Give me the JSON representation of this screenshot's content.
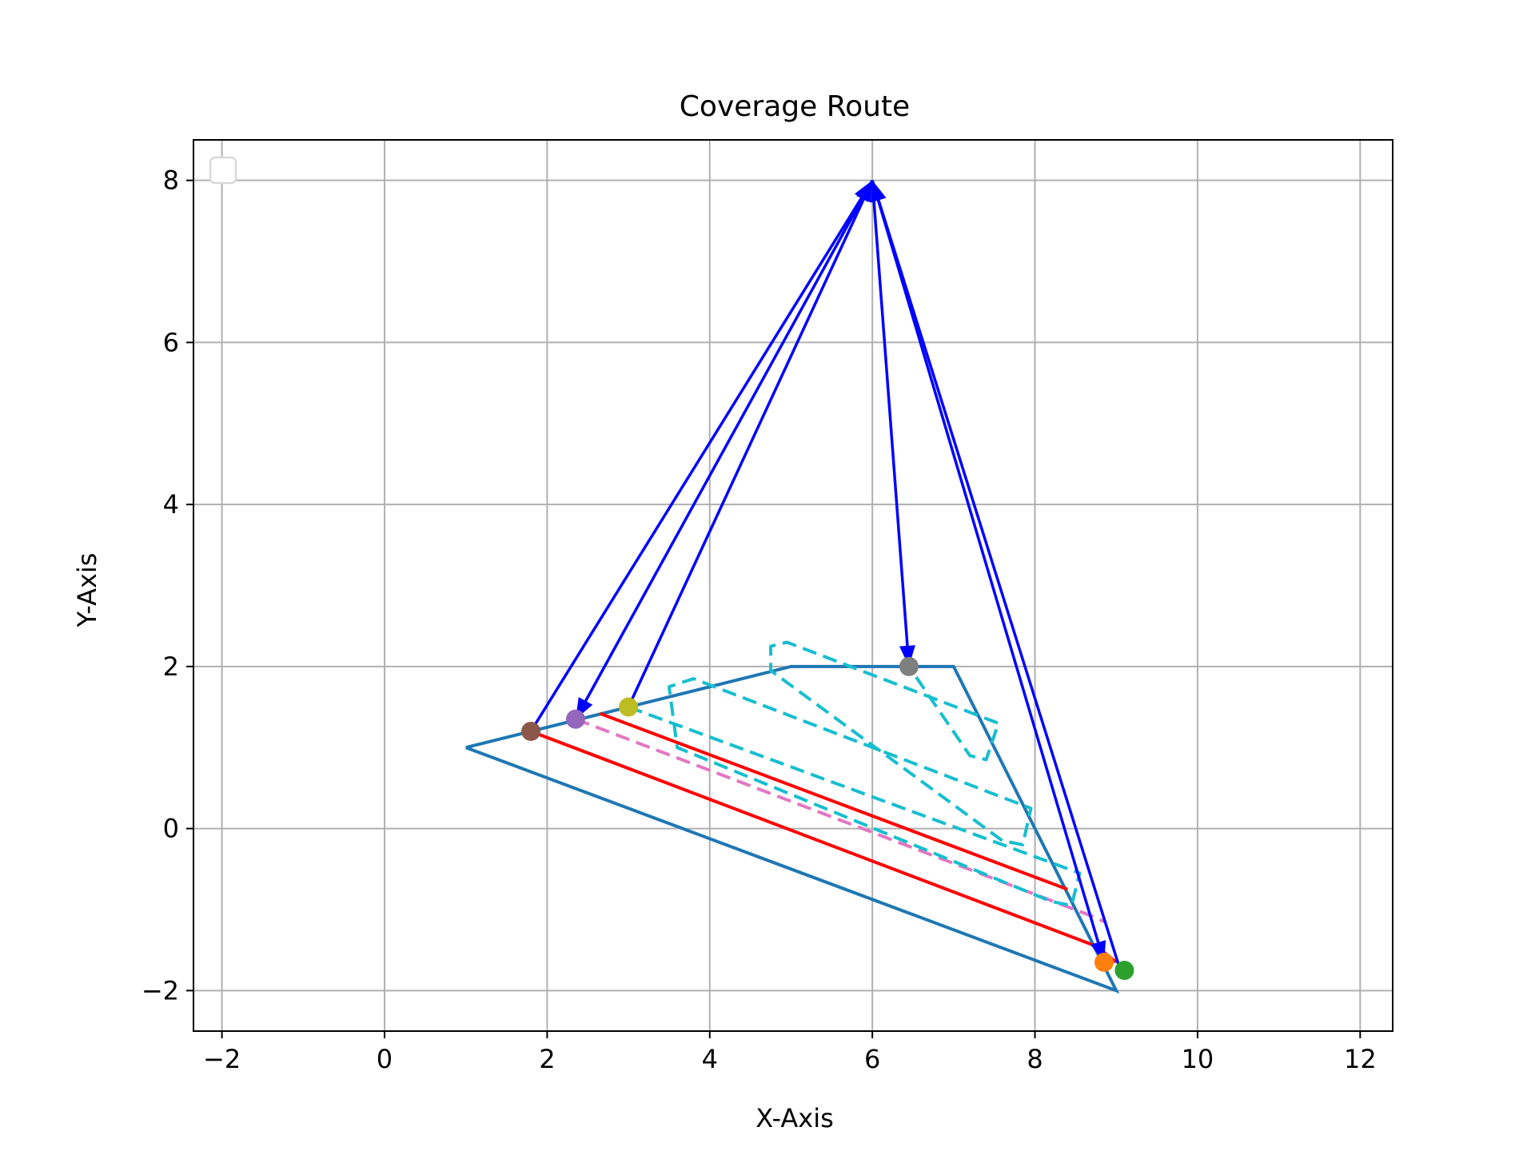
{
  "chart_data": {
    "type": "line",
    "title": "Coverage Route",
    "xlabel": "X-Axis",
    "ylabel": "Y-Axis",
    "xlim": [
      -2.35,
      12.4
    ],
    "ylim": [
      -2.5,
      8.5
    ],
    "xticks": [
      -2,
      0,
      2,
      4,
      6,
      8,
      10,
      12
    ],
    "yticks": [
      -2,
      0,
      2,
      4,
      6,
      8
    ],
    "grid": true,
    "legend": {
      "placement": "upper-left",
      "entries": []
    },
    "colors": {
      "boundary": "#1f77b4",
      "arrows": "#0000ff",
      "red_path": "#ff0000",
      "pink_path": "#e377c2",
      "cyan_path": "#17becf"
    },
    "boundary": [
      [
        1.0,
        1.0
      ],
      [
        5.0,
        2.0
      ],
      [
        7.0,
        2.0
      ],
      [
        9.0,
        -2.0
      ],
      [
        1.0,
        1.0
      ]
    ],
    "apex": [
      6.0,
      8.0
    ],
    "arrows": [
      {
        "from": [
          1.8,
          1.2
        ],
        "to": [
          6.0,
          8.0
        ]
      },
      {
        "from": [
          6.0,
          8.0
        ],
        "to": [
          2.35,
          1.35
        ]
      },
      {
        "from": [
          3.0,
          1.5
        ],
        "to": [
          6.0,
          8.0
        ]
      },
      {
        "from": [
          6.0,
          8.0
        ],
        "to": [
          6.45,
          2.0
        ]
      },
      {
        "from": [
          9.05,
          -1.75
        ],
        "to": [
          6.0,
          8.0
        ]
      },
      {
        "from": [
          6.0,
          8.0
        ],
        "to": [
          8.85,
          -1.65
        ]
      }
    ],
    "points": [
      {
        "x": 1.8,
        "y": 1.2,
        "color": "#8c564b"
      },
      {
        "x": 2.35,
        "y": 1.35,
        "color": "#9467bd"
      },
      {
        "x": 3.0,
        "y": 1.5,
        "color": "#bcbd22"
      },
      {
        "x": 6.45,
        "y": 2.0,
        "color": "#7f7f7f"
      },
      {
        "x": 8.85,
        "y": -1.65,
        "color": "#ff7f0e"
      },
      {
        "x": 9.1,
        "y": -1.75,
        "color": "#2ca02c"
      }
    ],
    "paths": [
      {
        "color": "#ff0000",
        "dashed": false,
        "points": [
          [
            1.8,
            1.2
          ],
          [
            8.75,
            -1.45
          ],
          [
            9.0,
            -1.65
          ]
        ]
      },
      {
        "color": "#ff0000",
        "dashed": false,
        "points": [
          [
            2.65,
            1.42
          ],
          [
            8.4,
            -0.75
          ]
        ]
      },
      {
        "color": "#e377c2",
        "dashed": true,
        "points": [
          [
            2.35,
            1.35
          ],
          [
            8.75,
            -1.1
          ],
          [
            8.85,
            -1.15
          ]
        ]
      },
      {
        "color": "#17becf",
        "dashed": true,
        "points": [
          [
            3.0,
            1.5
          ],
          [
            8.55,
            -0.55
          ],
          [
            8.45,
            -0.95
          ],
          [
            8.2,
            -0.9
          ],
          [
            3.6,
            1.0
          ],
          [
            3.5,
            1.75
          ],
          [
            3.8,
            1.85
          ],
          [
            7.95,
            0.25
          ],
          [
            7.85,
            -0.2
          ],
          [
            7.6,
            -0.15
          ],
          [
            4.75,
            1.95
          ],
          [
            4.75,
            2.25
          ],
          [
            4.95,
            2.3
          ],
          [
            7.55,
            1.3
          ],
          [
            7.4,
            0.85
          ],
          [
            7.2,
            0.9
          ],
          [
            6.45,
            2.0
          ]
        ]
      }
    ]
  }
}
